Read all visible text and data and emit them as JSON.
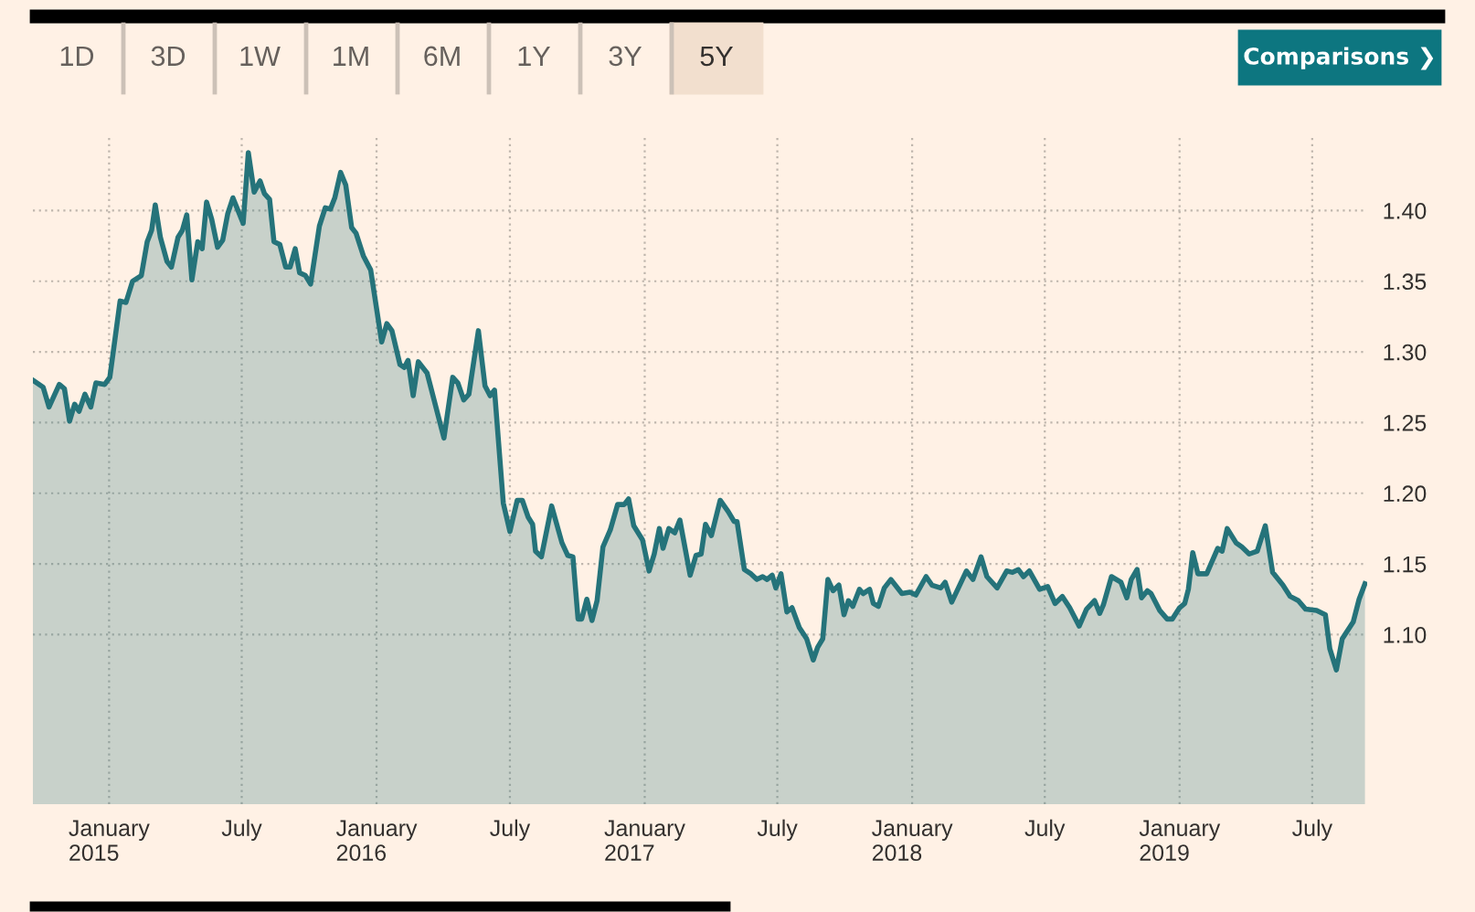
{
  "chart_data": {
    "type": "area",
    "annotations": [
      "1D",
      "3D",
      "1W",
      "1M",
      "6M",
      "1Y",
      "3Y",
      "5Y",
      "Comparisons ❯"
    ],
    "x": [
      "2014-09-19",
      "2014-10-03",
      "2014-10-11",
      "2014-10-25",
      "2014-11-01",
      "2014-11-08",
      "2014-11-15",
      "2014-11-21",
      "2014-11-29",
      "2014-12-07",
      "2014-12-14",
      "2014-12-26",
      "2015-01-02",
      "2015-01-16",
      "2015-01-24",
      "2015-02-02",
      "2015-02-14",
      "2015-02-22",
      "2015-02-28",
      "2015-03-05",
      "2015-03-12",
      "2015-03-21",
      "2015-03-27",
      "2015-04-05",
      "2015-04-11",
      "2015-04-17",
      "2015-04-24",
      "2015-05-02",
      "2015-05-08",
      "2015-05-14",
      "2015-05-21",
      "2015-05-29",
      "2015-06-05",
      "2015-06-12",
      "2015-06-19",
      "2015-07-03",
      "2015-07-10",
      "2015-07-18",
      "2015-07-26",
      "2015-08-01",
      "2015-08-08",
      "2015-08-14",
      "2015-08-22",
      "2015-08-30",
      "2015-09-05",
      "2015-09-12",
      "2015-09-18",
      "2015-09-26",
      "2015-10-03",
      "2015-10-15",
      "2015-10-23",
      "2015-10-30",
      "2015-11-05",
      "2015-11-13",
      "2015-11-20",
      "2015-11-28",
      "2015-12-04",
      "2015-12-14",
      "2015-12-24",
      "2016-01-08",
      "2016-01-15",
      "2016-01-22",
      "2016-02-02",
      "2016-02-08",
      "2016-02-13",
      "2016-02-20",
      "2016-02-27",
      "2016-03-10",
      "2016-04-02",
      "2016-04-14",
      "2016-04-21",
      "2016-04-29",
      "2016-05-06",
      "2016-05-19",
      "2016-05-28",
      "2016-06-04",
      "2016-06-10",
      "2016-06-22",
      "2016-07-01",
      "2016-07-11",
      "2016-07-18",
      "2016-07-26",
      "2016-08-01",
      "2016-08-05",
      "2016-08-13",
      "2016-08-27",
      "2016-09-10",
      "2016-09-18",
      "2016-09-25",
      "2016-10-02",
      "2016-10-07",
      "2016-10-14",
      "2016-10-21",
      "2016-10-28",
      "2016-11-05",
      "2016-11-15",
      "2016-11-25",
      "2016-12-04",
      "2016-12-10",
      "2016-12-17",
      "2016-12-29",
      "2017-01-07",
      "2017-01-14",
      "2017-01-21",
      "2017-01-26",
      "2017-02-03",
      "2017-02-11",
      "2017-02-18",
      "2017-03-04",
      "2017-03-12",
      "2017-03-19",
      "2017-03-25",
      "2017-04-02",
      "2017-04-14",
      "2017-04-25",
      "2017-05-03",
      "2017-05-07",
      "2017-05-17",
      "2017-05-26",
      "2017-06-03",
      "2017-06-11",
      "2017-06-17",
      "2017-06-24",
      "2017-06-29",
      "2017-07-06",
      "2017-07-14",
      "2017-07-21",
      "2017-07-31",
      "2017-08-10",
      "2017-08-19",
      "2017-08-25",
      "2017-09-01",
      "2017-09-08",
      "2017-09-15",
      "2017-09-23",
      "2017-09-30",
      "2017-10-06",
      "2017-10-12",
      "2017-10-21",
      "2017-10-26",
      "2017-11-04",
      "2017-11-09",
      "2017-11-16",
      "2017-11-24",
      "2017-12-03",
      "2017-12-18",
      "2017-12-29",
      "2018-01-06",
      "2018-01-20",
      "2018-01-28",
      "2018-02-09",
      "2018-02-15",
      "2018-02-24",
      "2018-03-16",
      "2018-03-25",
      "2018-04-05",
      "2018-04-13",
      "2018-04-27",
      "2018-05-10",
      "2018-05-18",
      "2018-05-26",
      "2018-06-02",
      "2018-06-10",
      "2018-06-24",
      "2018-07-05",
      "2018-07-15",
      "2018-07-25",
      "2018-08-04",
      "2018-08-17",
      "2018-08-27",
      "2018-09-07",
      "2018-09-14",
      "2018-09-19",
      "2018-09-30",
      "2018-10-13",
      "2018-10-21",
      "2018-10-27",
      "2018-11-04",
      "2018-11-10",
      "2018-11-18",
      "2018-11-23",
      "2018-12-05",
      "2018-12-15",
      "2018-12-22",
      "2019-01-01",
      "2019-01-08",
      "2019-01-13",
      "2019-01-19",
      "2019-01-26",
      "2019-02-07",
      "2019-02-22",
      "2019-02-28",
      "2019-03-07",
      "2019-03-19",
      "2019-03-27",
      "2019-04-06",
      "2019-04-17",
      "2019-04-28",
      "2019-05-08",
      "2019-05-22",
      "2019-06-01",
      "2019-06-12",
      "2019-06-22",
      "2019-07-07",
      "2019-07-19",
      "2019-07-25",
      "2019-08-03",
      "2019-08-11",
      "2019-08-26",
      "2019-09-03",
      "2019-09-11"
    ],
    "series": [
      {
        "color": "#25737a",
        "values": [
          1.28,
          1.275,
          1.261,
          1.277,
          1.274,
          1.251,
          1.263,
          1.258,
          1.27,
          1.261,
          1.278,
          1.277,
          1.282,
          1.336,
          1.335,
          1.35,
          1.354,
          1.378,
          1.386,
          1.404,
          1.381,
          1.364,
          1.36,
          1.381,
          1.386,
          1.397,
          1.351,
          1.378,
          1.373,
          1.406,
          1.394,
          1.374,
          1.379,
          1.398,
          1.409,
          1.391,
          1.441,
          1.413,
          1.421,
          1.412,
          1.408,
          1.378,
          1.376,
          1.36,
          1.36,
          1.373,
          1.356,
          1.354,
          1.348,
          1.389,
          1.402,
          1.401,
          1.409,
          1.427,
          1.418,
          1.388,
          1.384,
          1.368,
          1.358,
          1.307,
          1.32,
          1.315,
          1.291,
          1.289,
          1.294,
          1.269,
          1.293,
          1.285,
          1.239,
          1.282,
          1.278,
          1.266,
          1.27,
          1.315,
          1.276,
          1.269,
          1.273,
          1.193,
          1.173,
          1.195,
          1.195,
          1.183,
          1.178,
          1.159,
          1.155,
          1.191,
          1.165,
          1.156,
          1.155,
          1.111,
          1.111,
          1.125,
          1.11,
          1.124,
          1.162,
          1.174,
          1.192,
          1.192,
          1.196,
          1.177,
          1.167,
          1.145,
          1.157,
          1.175,
          1.161,
          1.175,
          1.172,
          1.181,
          1.142,
          1.156,
          1.157,
          1.178,
          1.17,
          1.195,
          1.187,
          1.18,
          1.18,
          1.146,
          1.143,
          1.139,
          1.141,
          1.139,
          1.142,
          1.133,
          1.143,
          1.116,
          1.119,
          1.105,
          1.097,
          1.082,
          1.091,
          1.097,
          1.139,
          1.131,
          1.135,
          1.114,
          1.124,
          1.12,
          1.132,
          1.129,
          1.132,
          1.122,
          1.12,
          1.133,
          1.139,
          1.129,
          1.13,
          1.128,
          1.141,
          1.135,
          1.133,
          1.137,
          1.123,
          1.145,
          1.139,
          1.155,
          1.141,
          1.133,
          1.145,
          1.144,
          1.146,
          1.141,
          1.145,
          1.132,
          1.134,
          1.122,
          1.127,
          1.119,
          1.106,
          1.118,
          1.124,
          1.115,
          1.121,
          1.141,
          1.137,
          1.126,
          1.139,
          1.146,
          1.126,
          1.131,
          1.129,
          1.117,
          1.111,
          1.111,
          1.119,
          1.122,
          1.132,
          1.158,
          1.143,
          1.143,
          1.161,
          1.159,
          1.175,
          1.165,
          1.162,
          1.157,
          1.159,
          1.177,
          1.144,
          1.135,
          1.127,
          1.124,
          1.118,
          1.117,
          1.114,
          1.09,
          1.075,
          1.097,
          1.109,
          1.125,
          1.136
        ]
      }
    ],
    "xlim": [
      "2014-09-19",
      "2019-09-14"
    ],
    "xticks": [
      {
        "value": "2015-01-01",
        "label": "January\n2015"
      },
      {
        "value": "2015-07-01",
        "label": "July"
      },
      {
        "value": "2016-01-01",
        "label": "January\n2016"
      },
      {
        "value": "2016-07-01",
        "label": "July"
      },
      {
        "value": "2017-01-01",
        "label": "January\n2017"
      },
      {
        "value": "2017-07-01",
        "label": "July"
      },
      {
        "value": "2018-01-01",
        "label": "January\n2018"
      },
      {
        "value": "2018-07-01",
        "label": "July"
      },
      {
        "value": "2019-01-01",
        "label": "January\n2019"
      },
      {
        "value": "2019-07-01",
        "label": "July"
      }
    ],
    "ylim": [
      0.98,
      1.452
    ],
    "yticks": [
      {
        "value": 1.1,
        "label": "1.10"
      },
      {
        "value": 1.15,
        "label": "1.15"
      },
      {
        "value": 1.2,
        "label": "1.20"
      },
      {
        "value": 1.25,
        "label": "1.25"
      },
      {
        "value": 1.3,
        "label": "1.30"
      },
      {
        "value": 1.35,
        "label": "1.35"
      },
      {
        "value": 1.4,
        "label": "1.40"
      }
    ],
    "grid": true,
    "line_style": "solid",
    "marker": "none"
  }
}
